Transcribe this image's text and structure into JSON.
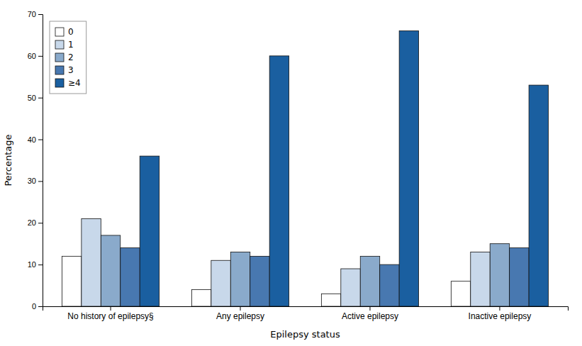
{
  "chart_data": {
    "type": "bar",
    "xlabel": "Epilepsy status",
    "ylabel": "Percentage",
    "categories": [
      "No history of epilepsy§",
      "Any epilepsy",
      "Active epilepsy",
      "Inactive epilepsy"
    ],
    "series": [
      {
        "name": "0",
        "color": "#ffffff",
        "values": [
          12,
          4,
          3,
          6
        ]
      },
      {
        "name": "1",
        "color": "#c8d8ea",
        "values": [
          21,
          11,
          9,
          13
        ]
      },
      {
        "name": "2",
        "color": "#8aaacb",
        "values": [
          17,
          13,
          12,
          15
        ]
      },
      {
        "name": "3",
        "color": "#4878b0",
        "values": [
          14,
          12,
          10,
          14
        ]
      },
      {
        "name": "≥4",
        "color": "#1a5fa0",
        "values": [
          36,
          60,
          66,
          53
        ]
      }
    ],
    "ylim": [
      0,
      70
    ],
    "yticks": [
      0,
      10,
      20,
      30,
      40,
      50,
      60,
      70
    ],
    "grid": false,
    "legend": "upper left"
  }
}
